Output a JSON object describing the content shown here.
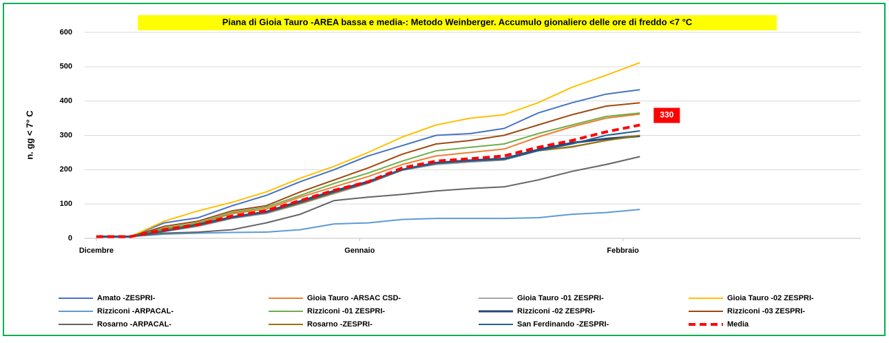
{
  "chart_data": {
    "type": "line",
    "title": "Piana di Gioia Tauro -AREA bassa e media-: Metodo Weinberger. Accumulo gionaliero delle ore di freddo  <7 °C",
    "y_label": "n. gg < 7° C",
    "x": [
      0,
      4,
      8,
      12,
      16,
      20,
      24,
      28,
      32,
      36,
      40,
      44,
      48,
      52,
      56,
      60,
      64
    ],
    "xlim": [
      -1,
      90
    ],
    "xticks": [
      {
        "value": 0,
        "label": "Dicembre"
      },
      {
        "value": 31,
        "label": "Gennaio"
      },
      {
        "value": 62,
        "label": "Febbraio"
      }
    ],
    "ylim": [
      0,
      600
    ],
    "yticks": [
      0,
      100,
      200,
      300,
      400,
      500,
      600
    ],
    "grid": true,
    "series": [
      {
        "name": "Amato -ZESPRI-",
        "color": "#4472c4",
        "values": [
          5,
          5,
          45,
          60,
          95,
          125,
          165,
          200,
          240,
          270,
          300,
          305,
          320,
          365,
          395,
          420,
          433
        ]
      },
      {
        "name": "Gioia Tauro -ARSAC CSD-",
        "color": "#ed7d31",
        "values": [
          5,
          5,
          28,
          42,
          72,
          85,
          120,
          150,
          180,
          215,
          240,
          250,
          260,
          295,
          325,
          350,
          362
        ]
      },
      {
        "name": "Gioia Tauro -01 ZESPRI-",
        "color": "#a5a5a5",
        "values": [
          5,
          5,
          20,
          35,
          58,
          72,
          100,
          130,
          160,
          198,
          215,
          222,
          228,
          255,
          265,
          285,
          298
        ]
      },
      {
        "name": "Gioia Tauro -02 ZESPRI-",
        "color": "#ffc000",
        "values": [
          5,
          5,
          50,
          80,
          105,
          135,
          175,
          210,
          250,
          295,
          330,
          350,
          360,
          395,
          440,
          475,
          512
        ]
      },
      {
        "name": "Rizziconi -ARPACAL-",
        "color": "#5b9bd5",
        "values": [
          5,
          5,
          12,
          15,
          17,
          18,
          25,
          42,
          45,
          55,
          58,
          58,
          58,
          60,
          70,
          75,
          84
        ]
      },
      {
        "name": "Rizziconi -01 ZESPRI-",
        "color": "#70ad47",
        "values": [
          5,
          5,
          30,
          45,
          75,
          90,
          125,
          160,
          190,
          225,
          255,
          265,
          275,
          305,
          330,
          355,
          365
        ]
      },
      {
        "name": "Rizziconi -02 ZESPRI-",
        "color": "#264478",
        "line_width": 3,
        "values": [
          5,
          5,
          22,
          40,
          62,
          77,
          108,
          138,
          165,
          200,
          220,
          227,
          232,
          258,
          278,
          290,
          298
        ]
      },
      {
        "name": "Rizziconi -03 ZESPRI-",
        "color": "#9e480e",
        "values": [
          5,
          5,
          35,
          50,
          80,
          95,
          135,
          170,
          205,
          245,
          275,
          285,
          300,
          330,
          360,
          385,
          395
        ]
      },
      {
        "name": "Rosarno -ARPACAL-",
        "color": "#636363",
        "values": [
          5,
          5,
          15,
          18,
          25,
          45,
          70,
          110,
          120,
          128,
          138,
          145,
          150,
          170,
          195,
          215,
          238
        ]
      },
      {
        "name": "Rosarno -ZESPRI-",
        "color": "#997300",
        "values": [
          5,
          5,
          22,
          38,
          60,
          75,
          102,
          133,
          162,
          200,
          218,
          225,
          230,
          255,
          267,
          285,
          300
        ]
      },
      {
        "name": "San Ferdinando -ZESPRI-",
        "color": "#255e91",
        "values": [
          5,
          5,
          20,
          38,
          60,
          75,
          105,
          135,
          162,
          200,
          218,
          225,
          230,
          255,
          275,
          300,
          313
        ]
      },
      {
        "name": "Media",
        "color": "#ff0000",
        "line_width": 4,
        "dashed": true,
        "values": [
          5,
          5,
          25,
          40,
          65,
          80,
          110,
          140,
          165,
          205,
          225,
          232,
          240,
          265,
          285,
          310,
          330
        ]
      }
    ],
    "labeled_series": 11
  }
}
